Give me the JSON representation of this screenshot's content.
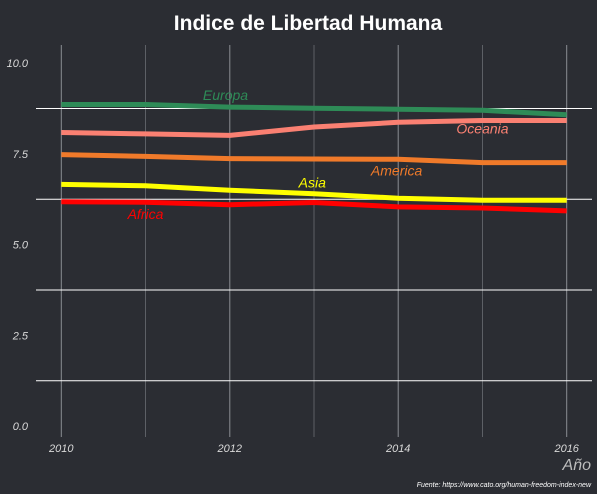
{
  "chart_data": {
    "type": "line",
    "title": "Indice de Libertad Humana",
    "xlabel": "Año",
    "ylabel": "",
    "caption": "Fuente: https://www.cato.org/human-freedom-index-new",
    "x": [
      2010,
      2011,
      2012,
      2013,
      2014,
      2015,
      2016
    ],
    "xticks": [
      "2010",
      "2012",
      "2014",
      "2016"
    ],
    "yticks": [
      "0.0",
      "2.5",
      "5.0",
      "7.5",
      "10.0"
    ],
    "xlim": [
      2009.7,
      2016.3
    ],
    "ylim": [
      -0.3,
      10.5
    ],
    "grid": true,
    "legend": "none (labels on lines)",
    "series": [
      {
        "name": "Europa",
        "color": "#2e8b57",
        "values": [
          8.86,
          8.86,
          8.79,
          8.76,
          8.73,
          8.7,
          8.58
        ]
      },
      {
        "name": "Oceania",
        "color": "#fa8072",
        "values": [
          8.09,
          8.05,
          8.01,
          8.24,
          8.37,
          8.42,
          8.42
        ]
      },
      {
        "name": "America",
        "color": "#f07a2a",
        "values": [
          7.48,
          7.43,
          7.37,
          7.36,
          7.35,
          7.26,
          7.26
        ]
      },
      {
        "name": "Asia",
        "color": "#ffff00",
        "values": [
          6.66,
          6.62,
          6.5,
          6.4,
          6.28,
          6.22,
          6.22
        ]
      },
      {
        "name": "Africa",
        "color": "#ff0000",
        "values": [
          6.18,
          6.17,
          6.1,
          6.16,
          6.04,
          6.01,
          5.93
        ]
      }
    ]
  }
}
